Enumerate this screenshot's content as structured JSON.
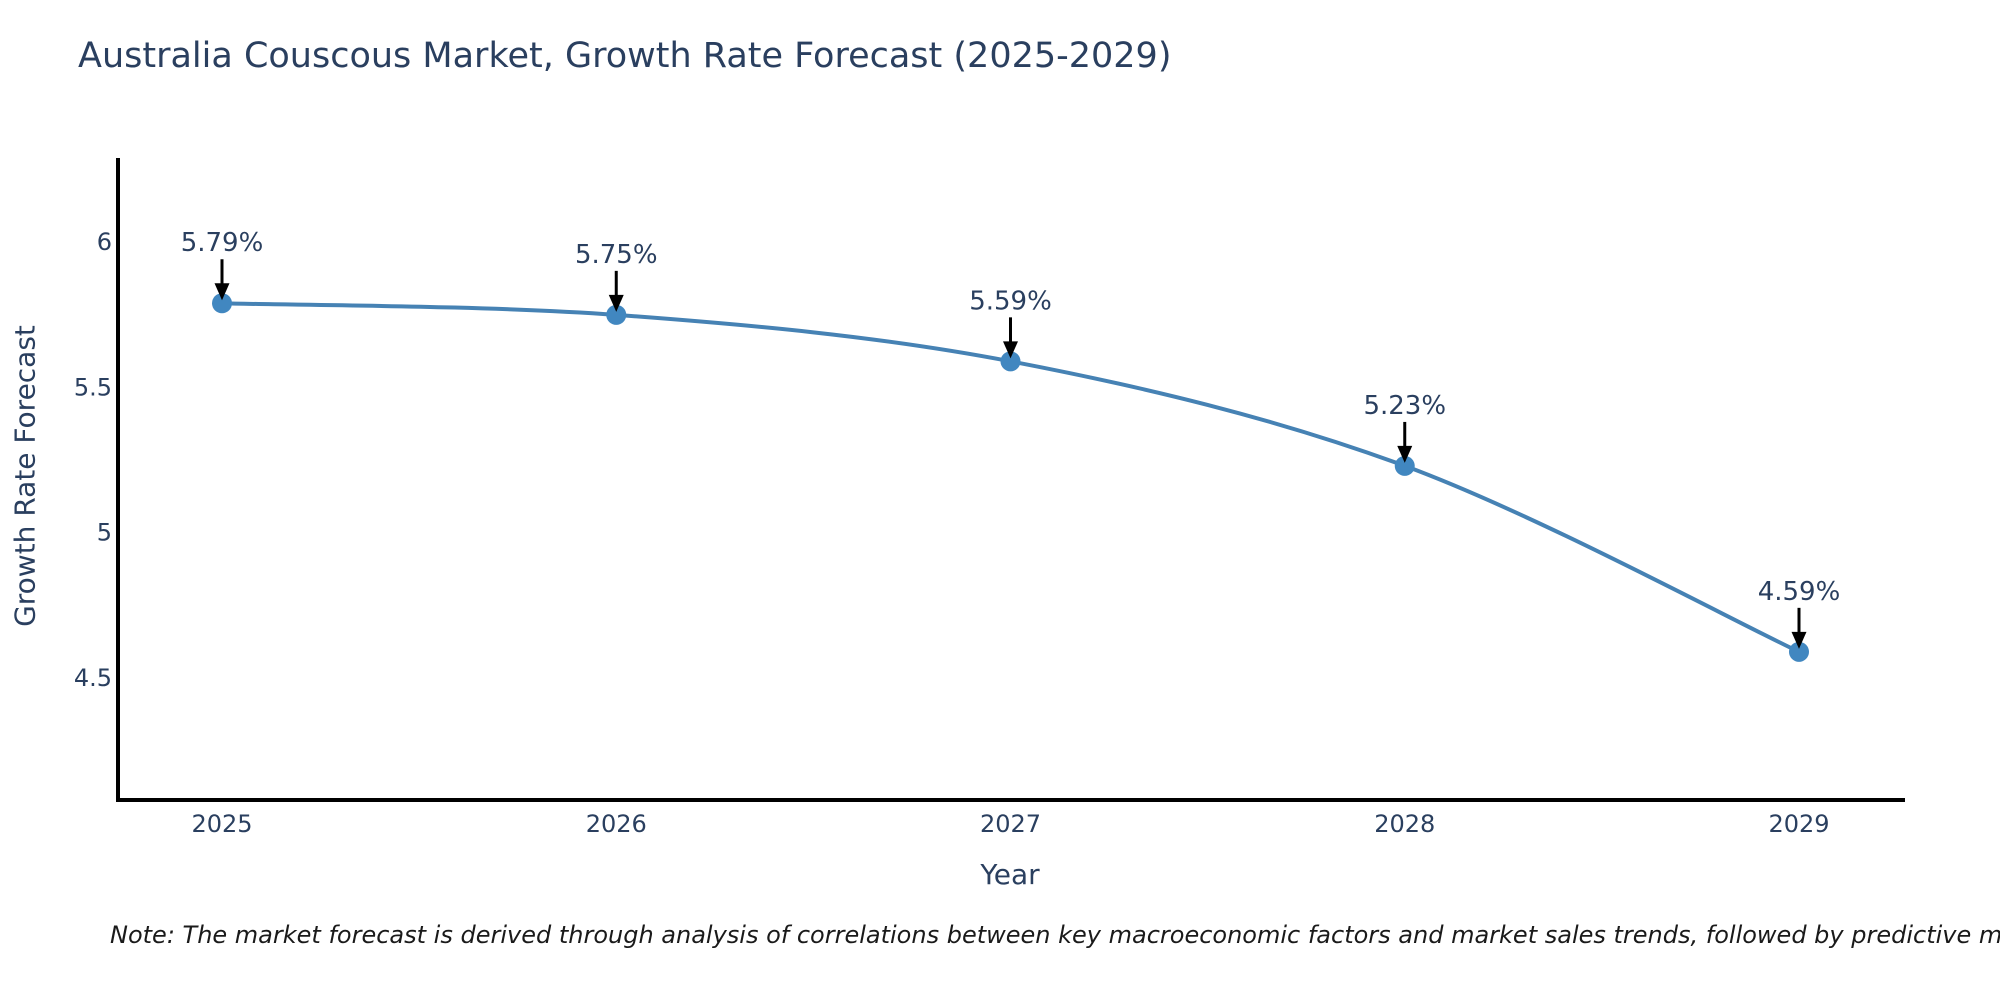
{
  "title": "Australia Couscous Market, Growth Rate Forecast (2025-2029)",
  "note": "Note: The market forecast is derived through analysis of correlations between key macroeconomic factors and market sales trends, followed by predictive modeling to project future sales",
  "chart_data": {
    "type": "line",
    "title": "Australia Couscous Market, Growth Rate Forecast (2025-2029)",
    "xlabel": "Year",
    "ylabel": "Growth Rate Forecast",
    "categories": [
      "2025",
      "2026",
      "2027",
      "2028",
      "2029"
    ],
    "series": [
      {
        "name": "Growth Rate Forecast",
        "values": [
          5.79,
          5.75,
          5.59,
          5.23,
          4.59
        ],
        "point_labels": [
          "5.79%",
          "5.75%",
          "5.59%",
          "5.23%",
          "4.59%"
        ]
      }
    ],
    "line_shape": "spline",
    "markers": true,
    "grid": false,
    "legend": "none",
    "yticks": [
      4.5,
      5,
      5.5,
      6
    ],
    "ylim": [
      4.08,
      6.29
    ],
    "colors": {
      "line": "#4682b4",
      "marker": "#4187c0",
      "arrow": "#000000",
      "axis": "#000000",
      "text": "#2a3f5f",
      "note_text": "#1a1a1a"
    }
  }
}
